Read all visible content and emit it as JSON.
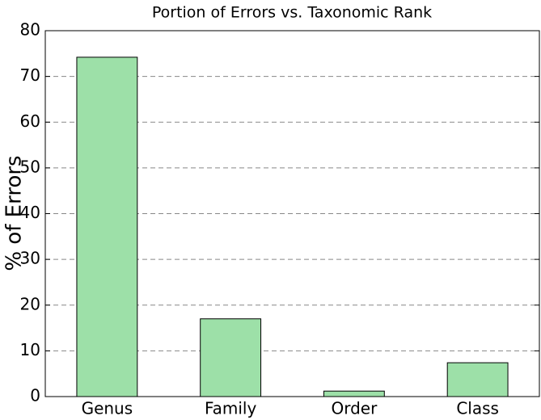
{
  "chart_data": {
    "type": "bar",
    "title": "Portion of Errors vs. Taxonomic Rank",
    "y_label": "% of Errors",
    "categories": [
      "Genus",
      "Family",
      "Order",
      "Class"
    ],
    "values": [
      74.2,
      17.0,
      1.2,
      7.4
    ],
    "color": "#9de0a8",
    "ylim": [
      0,
      80
    ],
    "yticks": [
      0,
      10,
      20,
      30,
      40,
      50,
      60,
      70,
      80
    ],
    "grid": true
  }
}
